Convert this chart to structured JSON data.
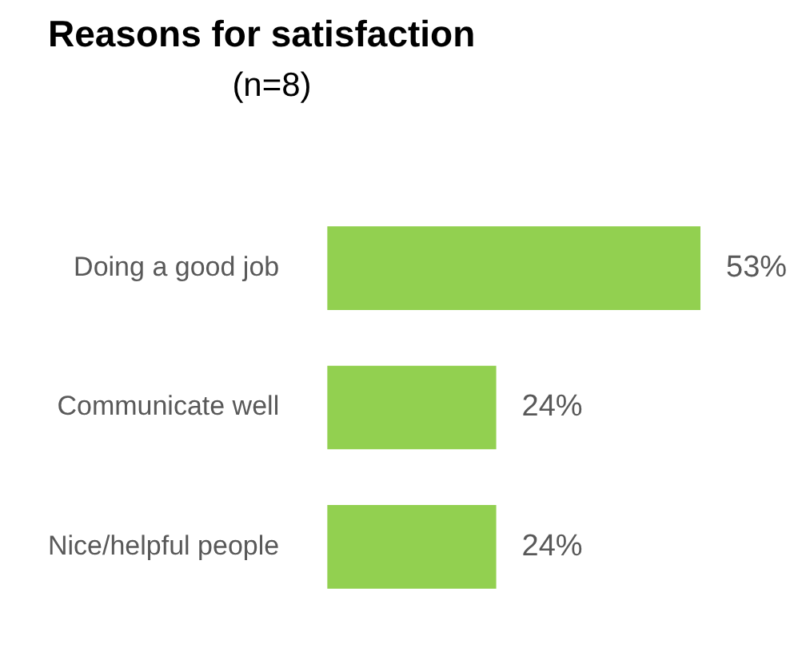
{
  "chart_data": {
    "type": "bar",
    "orientation": "horizontal",
    "title": "Reasons for satisfaction",
    "subtitle": "(n=8)",
    "categories": [
      "Doing a good job",
      "Communicate well",
      "Nice/helpful people"
    ],
    "values": [
      53,
      24,
      24
    ],
    "color": "#92d050",
    "value_labels": [
      "53%",
      "24%",
      "24%"
    ],
    "legend": false
  }
}
